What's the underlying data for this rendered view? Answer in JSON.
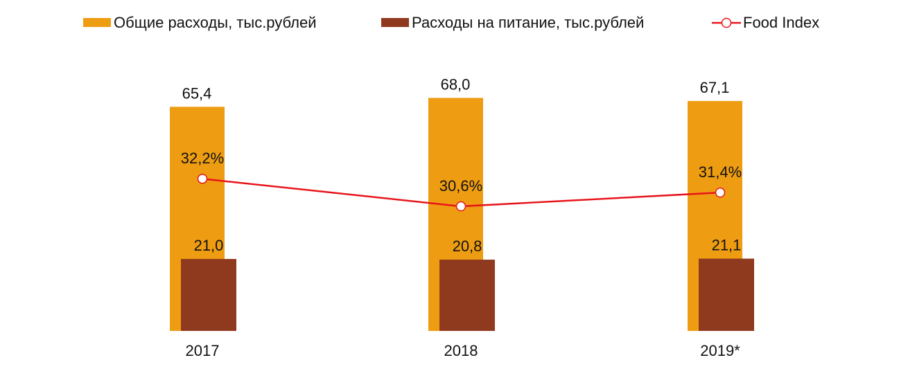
{
  "chart_data": {
    "type": "bar",
    "categories": [
      "2017",
      "2018",
      "2019*"
    ],
    "series": [
      {
        "name": "Общие расходы, тыс.рублей",
        "type": "bar",
        "color": "#EE9D12",
        "values": [
          65.4,
          68.0,
          67.1
        ],
        "labels": [
          "65,4",
          "68,0",
          "67,1"
        ]
      },
      {
        "name": "Расходы на питание, тыс.рублей",
        "type": "bar",
        "color": "#8F3A1F",
        "values": [
          21.0,
          20.8,
          21.1
        ],
        "labels": [
          "21,0",
          "20,8",
          "21,1"
        ]
      },
      {
        "name": "Food Index",
        "type": "line",
        "color": "#E8141B",
        "marker": "white-circle",
        "values": [
          32.2,
          30.6,
          31.4
        ],
        "labels": [
          "32,2%",
          "30,6%",
          "31,4%"
        ]
      }
    ],
    "legend_position": "top",
    "grid": false,
    "ylim": [
      0,
      75
    ]
  }
}
